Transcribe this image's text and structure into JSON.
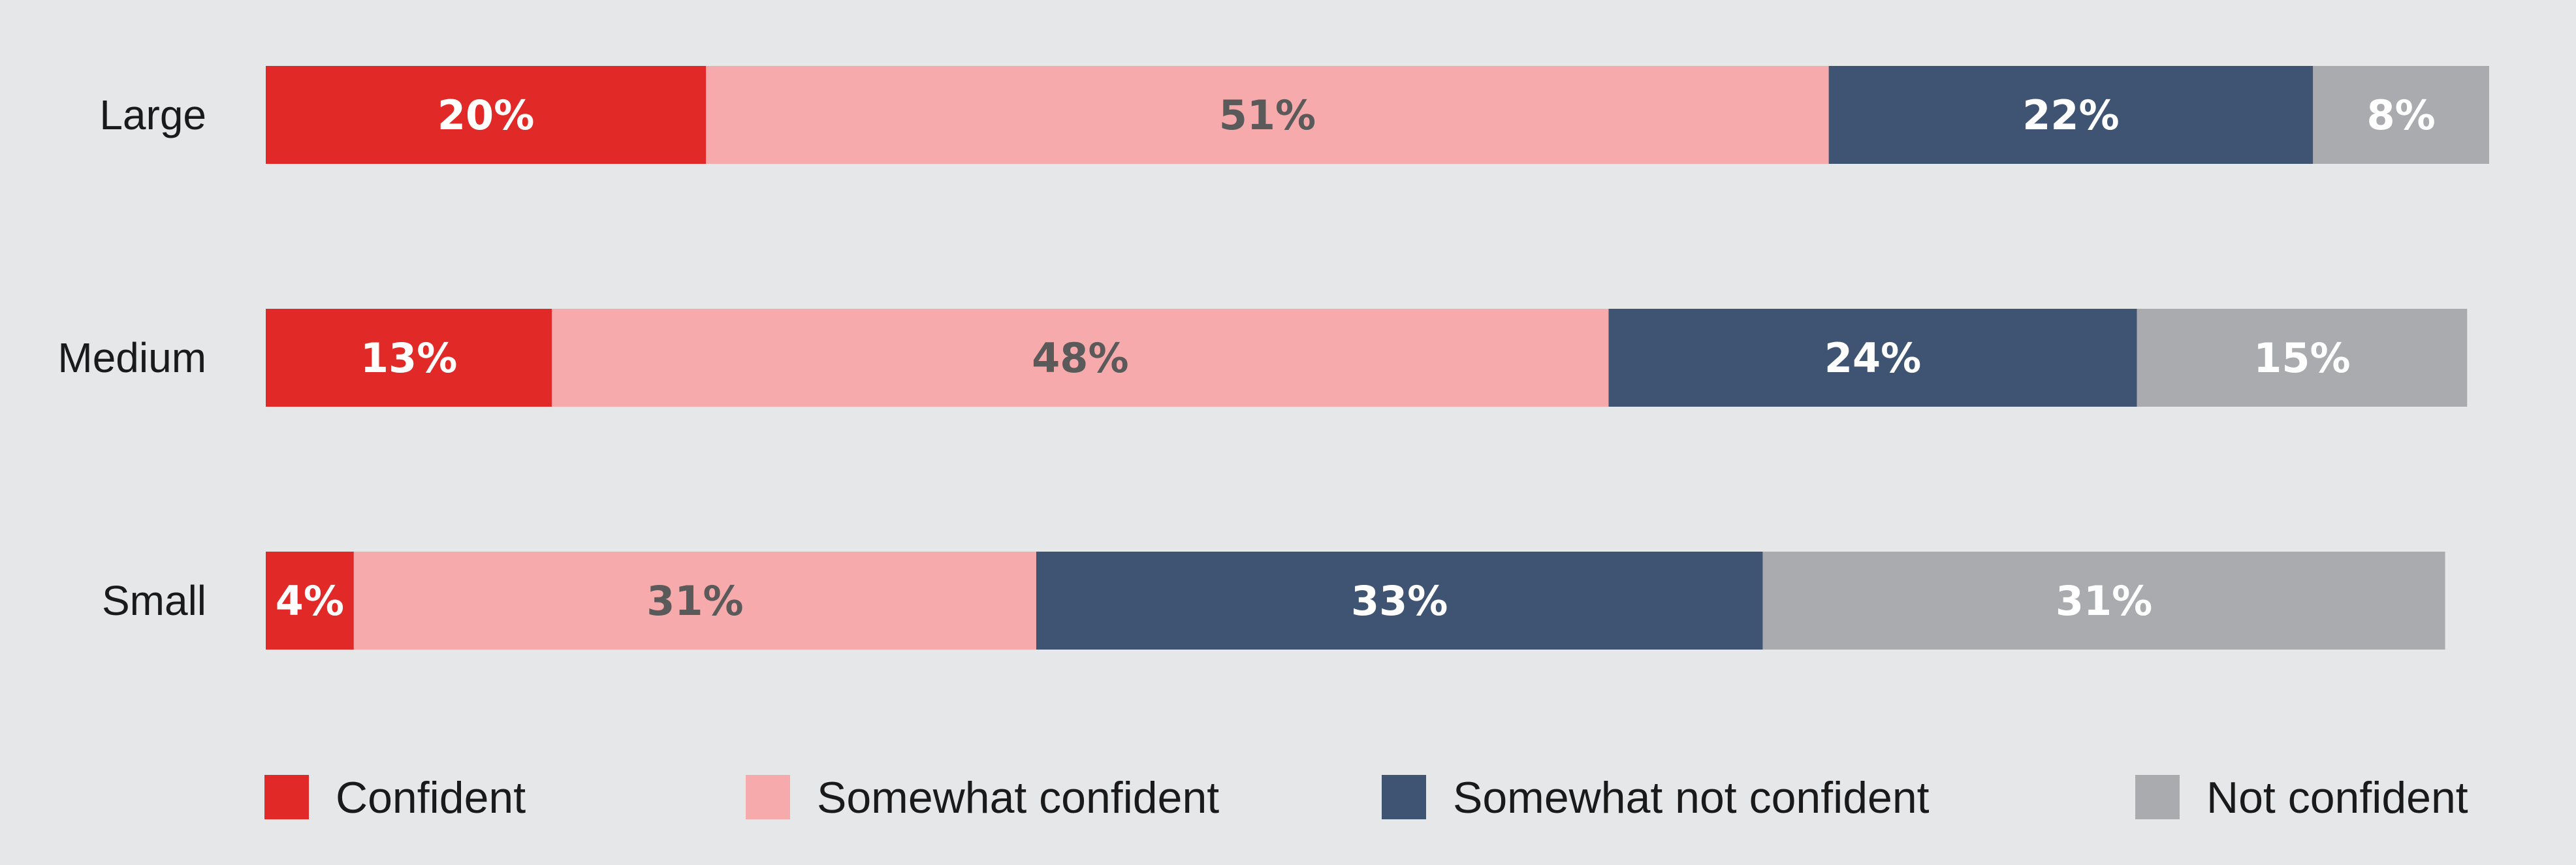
{
  "chart_data": {
    "type": "bar",
    "orientation": "horizontal",
    "stacked": true,
    "categories": [
      "Large",
      "Medium",
      "Small"
    ],
    "series": [
      {
        "name": "Confident",
        "color": "#e12a27",
        "label_color": "#ffffff",
        "values": [
          20,
          13,
          4
        ]
      },
      {
        "name": "Somewhat confident",
        "color": "#f6aaab",
        "label_color": "#5a5a5a",
        "values": [
          51,
          48,
          31
        ]
      },
      {
        "name": "Somewhat not confident",
        "color": "#3f5472",
        "label_color": "#ffffff",
        "values": [
          22,
          24,
          33
        ]
      },
      {
        "name": "Not confident",
        "color": "#aaabae",
        "label_color": "#ffffff",
        "values": [
          8,
          15,
          31
        ]
      }
    ],
    "value_suffix": "%",
    "xlim": [
      0,
      101
    ],
    "legend_position": "bottom",
    "grid": false
  }
}
